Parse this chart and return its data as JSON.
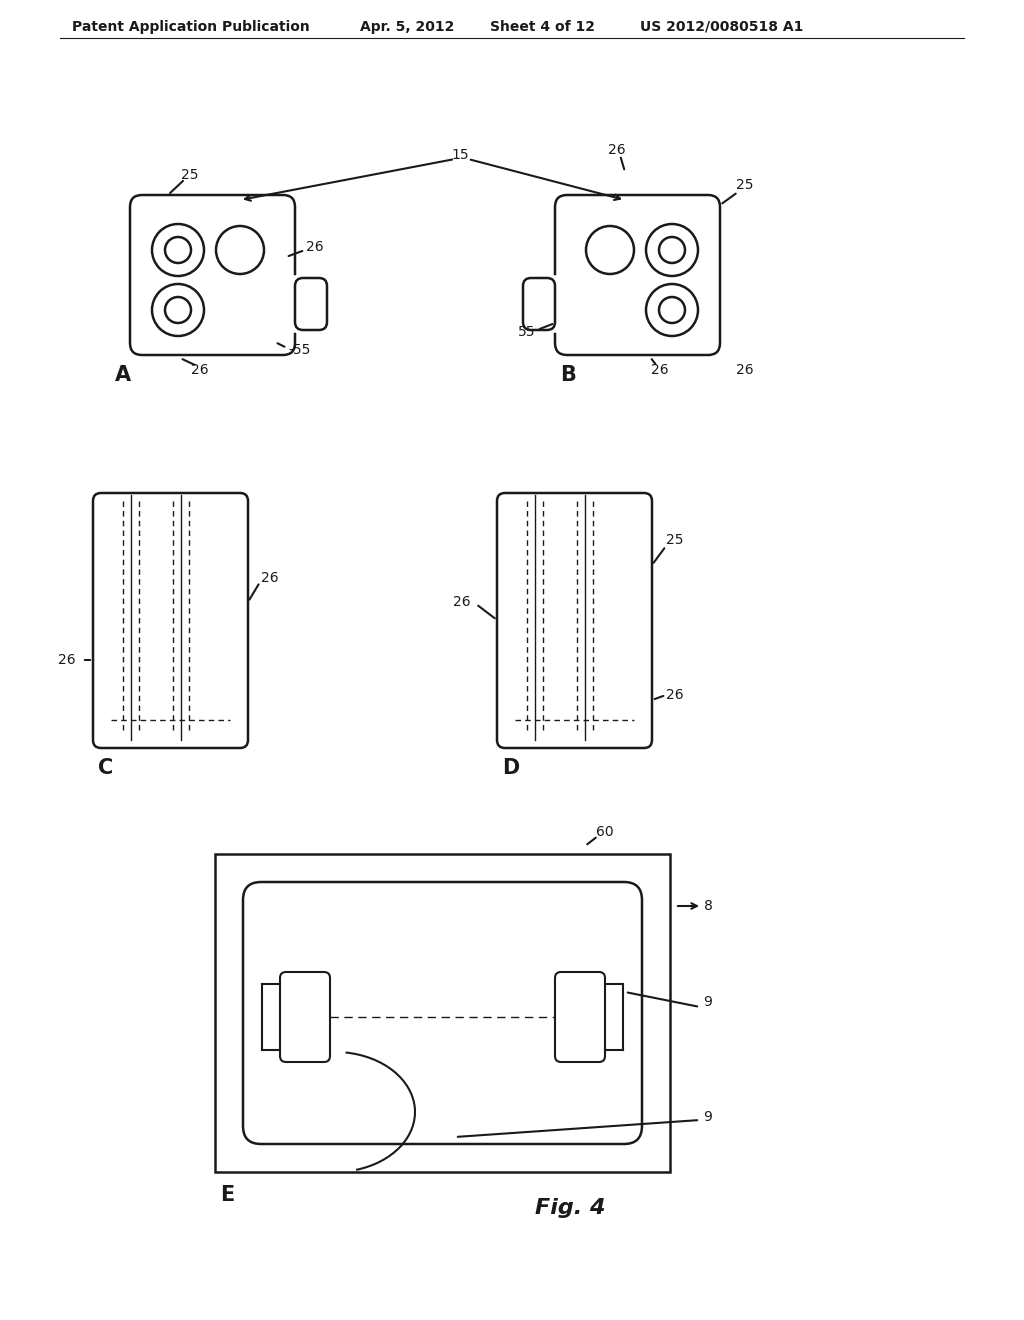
{
  "bg_color": "#ffffff",
  "header_left": "Patent Application Publication",
  "header_mid1": "Apr. 5, 2012",
  "header_mid2": "Sheet 4 of 12",
  "header_right": "US 2012/0080518 A1",
  "line_color": "#1a1a1a",
  "line_width": 1.5,
  "fig_label": "Fig. 4"
}
